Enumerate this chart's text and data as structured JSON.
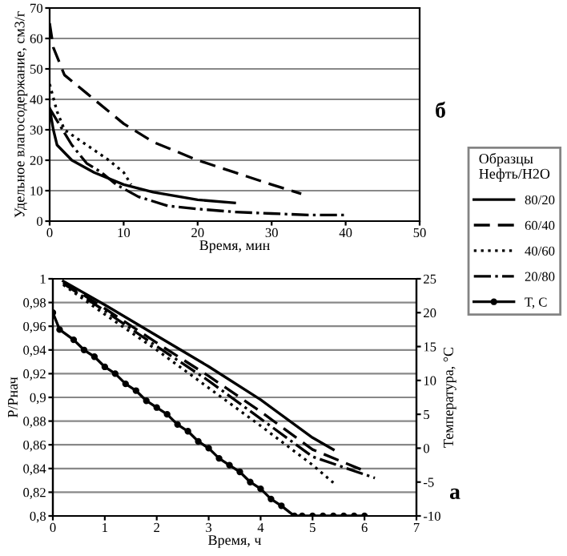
{
  "chart_data": [
    {
      "type": "line",
      "title": "б",
      "xlabel": "Время, мин",
      "ylabel": "Удельное влагосодержание, см3/г",
      "xlim": [
        0,
        50
      ],
      "xticks": [
        0,
        10,
        20,
        30,
        40,
        50
      ],
      "ylim": [
        0,
        70
      ],
      "yticks": [
        0,
        10,
        20,
        30,
        40,
        50,
        60,
        70
      ],
      "grid": "y",
      "series": [
        {
          "color": "#000000",
          "line_style": "solid",
          "x": [
            0,
            0.5,
            1,
            3,
            6,
            10,
            14,
            20,
            25
          ],
          "values": [
            37,
            30,
            25,
            20,
            16,
            12,
            9.5,
            7,
            6
          ]
        },
        {
          "color": "#000000",
          "line_style": "dashed",
          "x": [
            0,
            0.5,
            2,
            5,
            10,
            14,
            20,
            25,
            30,
            34
          ],
          "values": [
            65,
            57,
            48,
            42,
            32,
            26,
            20,
            16,
            12,
            9
          ]
        },
        {
          "color": "#000000",
          "line_style": "dotted",
          "x": [
            0,
            1,
            2,
            5,
            8,
            10,
            11
          ],
          "values": [
            45,
            36,
            30,
            25,
            20,
            16,
            12
          ]
        },
        {
          "color": "#000000",
          "line_style": "dashdot",
          "x": [
            0,
            1,
            3,
            5,
            7,
            9,
            12,
            16,
            20,
            25,
            30,
            35,
            40
          ],
          "values": [
            37,
            33,
            25,
            19,
            16,
            12,
            8,
            5,
            4,
            3,
            2.5,
            2,
            2
          ]
        }
      ]
    },
    {
      "type": "line",
      "title": "а",
      "xlabel": "Время, ч",
      "ylabel": "P/Pнач",
      "y2label": "Температура, °C",
      "legend_title": "Образцы\nНефть/H2O",
      "legend": "right",
      "grid": "y",
      "xlim": [
        0,
        7
      ],
      "xticks": [
        0,
        1,
        2,
        3,
        4,
        5,
        6,
        7
      ],
      "ylim": [
        0.8,
        1.0
      ],
      "yticks": [
        {
          "value": 0.8,
          "label": "0,8"
        },
        {
          "value": 0.82,
          "label": "0,82"
        },
        {
          "value": 0.84,
          "label": "0,84"
        },
        {
          "value": 0.86,
          "label": "0,86"
        },
        {
          "value": 0.88,
          "label": "0,88"
        },
        {
          "value": 0.9,
          "label": "0,9"
        },
        {
          "value": 0.92,
          "label": "0,92"
        },
        {
          "value": 0.94,
          "label": "0,94"
        },
        {
          "value": 0.96,
          "label": "0,96"
        },
        {
          "value": 0.98,
          "label": "0,98"
        },
        1
      ],
      "y2lim": [
        -10,
        25
      ],
      "y2ticks": [
        -10,
        -5,
        0,
        5,
        10,
        15,
        20,
        25
      ],
      "series": [
        {
          "name": "80/20",
          "color": "#000000",
          "line_style": "solid",
          "x": [
            0.2,
            1,
            2,
            3,
            4,
            5,
            5.4
          ],
          "values": [
            0.998,
            0.978,
            0.952,
            0.926,
            0.898,
            0.866,
            0.856
          ]
        },
        {
          "name": "60/40",
          "color": "#000000",
          "line_style": "dashed",
          "x": [
            0.2,
            1,
            2,
            3,
            4,
            5,
            6
          ],
          "values": [
            0.997,
            0.975,
            0.946,
            0.918,
            0.888,
            0.856,
            0.838
          ]
        },
        {
          "name": "40/60",
          "color": "#000000",
          "line_style": "dotted",
          "x": [
            0.2,
            1,
            2,
            3,
            4,
            5,
            5.4
          ],
          "values": [
            0.995,
            0.97,
            0.94,
            0.908,
            0.876,
            0.843,
            0.828
          ]
        },
        {
          "name": "20/80",
          "color": "#000000",
          "line_style": "dashdot",
          "x": [
            0.2,
            1,
            2,
            3,
            4,
            5,
            6.2
          ],
          "values": [
            0.996,
            0.973,
            0.943,
            0.914,
            0.882,
            0.85,
            0.832
          ]
        },
        {
          "name": "T, C",
          "color": "#000000",
          "line_style": "solid",
          "marker": "circle",
          "axis": "y2",
          "x": [
            0,
            0.13,
            0.4,
            0.6,
            0.8,
            1,
            1.2,
            1.4,
            1.6,
            1.8,
            2,
            2.2,
            2.4,
            2.6,
            2.8,
            3,
            3.2,
            3.4,
            3.6,
            3.8,
            4,
            4.2,
            4.4,
            4.65,
            4.8,
            5,
            5.2,
            5.4,
            5.6,
            5.8,
            6
          ],
          "values": [
            20,
            17.5,
            16,
            14.5,
            13.5,
            12,
            11,
            9.5,
            8.5,
            7,
            6,
            5,
            3.5,
            2.5,
            1,
            0,
            -1.5,
            -2.5,
            -3.5,
            -5,
            -6,
            -7.5,
            -8.5,
            -10,
            -10,
            -10,
            -10,
            -10,
            -10,
            -10,
            -10
          ]
        }
      ]
    }
  ]
}
